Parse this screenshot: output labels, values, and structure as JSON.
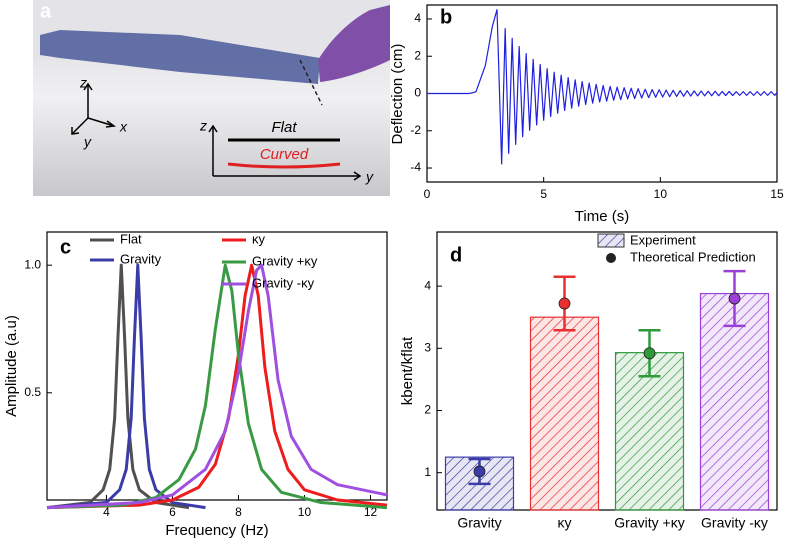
{
  "photo": {
    "panel_label": "a",
    "axis_z": "z",
    "axis_x": "x",
    "axis_y": "y",
    "inset_z": "z",
    "inset_y": "y",
    "flat": "Flat",
    "curved": "Curved"
  },
  "chart_data": [
    {
      "type": "line",
      "panel_label": "b",
      "x_label": "Time (s)",
      "y_label": "Deflection (cm)",
      "color": "#1f1fe0",
      "xlim": [
        0,
        15
      ],
      "ylim": [
        -4.75,
        4.75
      ],
      "xticks": [
        0,
        5,
        10,
        15
      ],
      "yticks": [
        -4,
        -2,
        0,
        2,
        4
      ],
      "x": [
        0,
        1.8,
        2.0,
        2.1,
        2.5,
        2.8,
        3.0,
        3.2,
        3.35,
        3.5,
        3.65,
        3.8,
        3.95,
        4.1,
        4.25,
        4.4,
        4.55,
        4.7,
        4.85,
        5,
        5.15,
        5.3,
        5.45,
        5.6,
        5.75,
        5.9,
        6.05,
        6.2,
        6.35,
        6.5,
        6.65,
        6.8,
        6.95,
        7.1,
        7.25,
        7.4,
        7.55,
        7.7,
        7.85,
        8,
        8.15,
        8.3,
        8.45,
        8.6,
        8.75,
        8.9,
        9.05,
        9.2,
        9.35,
        9.5,
        9.65,
        9.8,
        9.95,
        10.1,
        10.25,
        10.4,
        10.55,
        10.7,
        10.85,
        11,
        11.15,
        11.3,
        11.45,
        11.6,
        11.75,
        11.9,
        12.05,
        12.2,
        12.35,
        12.5,
        12.65,
        12.8,
        12.95,
        13.1,
        13.25,
        13.4,
        13.55,
        13.7,
        13.85,
        14,
        14.15,
        14.3,
        14.45,
        14.6,
        14.75,
        14.9,
        15
      ],
      "values": [
        0,
        0,
        0.05,
        0.1,
        1.5,
        3.6,
        4.5,
        -3.78,
        3.48,
        -3.21,
        2.96,
        -2.73,
        2.52,
        -2.32,
        2.14,
        -1.98,
        1.83,
        -1.69,
        1.56,
        -1.44,
        1.33,
        -1.23,
        1.14,
        -1.06,
        0.98,
        -0.91,
        0.85,
        -0.79,
        0.73,
        -0.68,
        0.64,
        -0.59,
        0.56,
        -0.52,
        0.49,
        -0.46,
        0.43,
        -0.41,
        0.38,
        -0.36,
        0.34,
        -0.33,
        0.31,
        -0.29,
        0.28,
        -0.27,
        0.26,
        -0.24,
        0.23,
        -0.22,
        0.21,
        -0.2,
        0.2,
        -0.19,
        0.18,
        -0.17,
        0.17,
        -0.16,
        0.16,
        -0.15,
        0.15,
        -0.14,
        0.14,
        -0.13,
        0.13,
        -0.13,
        0.12,
        -0.12,
        0.12,
        -0.12,
        0.11,
        -0.11,
        0.11,
        -0.11,
        0.1,
        -0.1,
        0.1,
        -0.1,
        0.1,
        -0.1,
        0.1,
        -0.1,
        0.1,
        -0.1,
        0.1,
        -0.1,
        0.05
      ]
    },
    {
      "type": "line",
      "panel_label": "c",
      "x_label": "Frequency (Hz)",
      "y_label": "Amplitude (a.u)",
      "xlim": [
        2.2,
        12.5
      ],
      "ylim": [
        0.08,
        1.13
      ],
      "xticks": [
        4,
        6,
        8,
        10,
        12
      ],
      "yticks": [
        0.5,
        {
          "value": 1,
          "label": "1.0"
        }
      ],
      "series": [
        {
          "name": "Flat",
          "color": "#505050",
          "x": [
            2.2,
            3.5,
            3.9,
            4.1,
            4.25,
            4.35,
            4.45,
            4.55,
            4.65,
            4.8,
            5.0,
            5.5,
            6.5
          ],
          "values": [
            0.05,
            0.07,
            0.12,
            0.2,
            0.4,
            0.72,
            1.0,
            0.72,
            0.4,
            0.2,
            0.12,
            0.07,
            0.05
          ]
        },
        {
          "name": "Gravity",
          "color": "#3c3ca8",
          "x": [
            2.2,
            4.0,
            4.4,
            4.6,
            4.75,
            4.85,
            4.95,
            5.05,
            5.15,
            5.3,
            5.5,
            6.0,
            7.0
          ],
          "values": [
            0.05,
            0.07,
            0.12,
            0.2,
            0.4,
            0.72,
            1.0,
            0.72,
            0.4,
            0.2,
            0.12,
            0.07,
            0.05
          ]
        },
        {
          "name": "κy",
          "color": "#ee1c1c",
          "x": [
            2.2,
            5,
            6,
            6.8,
            7.3,
            7.7,
            8.0,
            8.2,
            8.4,
            8.6,
            8.8,
            9.1,
            9.5,
            10,
            11,
            12.5
          ],
          "values": [
            0.05,
            0.06,
            0.08,
            0.13,
            0.22,
            0.4,
            0.65,
            0.88,
            1.0,
            0.88,
            0.6,
            0.35,
            0.2,
            0.12,
            0.08,
            0.06
          ]
        },
        {
          "name": "Gravity +κy",
          "color": "#3a9a44",
          "x": [
            2.2,
            4.5,
            5.5,
            6.2,
            6.7,
            7.0,
            7.3,
            7.6,
            7.8,
            8.0,
            8.3,
            8.7,
            9.3,
            10.5,
            12.5
          ],
          "values": [
            0.05,
            0.06,
            0.09,
            0.16,
            0.28,
            0.45,
            0.75,
            1.0,
            0.9,
            0.65,
            0.38,
            0.2,
            0.11,
            0.07,
            0.05
          ]
        },
        {
          "name": "Gravity -κy",
          "color": "#a050e0",
          "x": [
            2.2,
            5,
            6,
            7,
            7.6,
            8.0,
            8.3,
            8.55,
            8.7,
            8.9,
            9.2,
            9.6,
            10.2,
            11,
            12.5
          ],
          "values": [
            0.05,
            0.07,
            0.1,
            0.2,
            0.35,
            0.58,
            0.82,
            0.98,
            1.0,
            0.88,
            0.55,
            0.33,
            0.2,
            0.14,
            0.1
          ]
        }
      ]
    },
    {
      "type": "bar",
      "panel_label": "d",
      "y_label": "kbent/kflat",
      "categories": [
        "Gravity",
        "κy",
        "Gravity +κy",
        "Gravity -κy"
      ],
      "colors": [
        "#3c3ca8",
        "#e83030",
        "#2e9a3a",
        "#9a40d8"
      ],
      "ylim": [
        0.4,
        4.87
      ],
      "yticks": [
        1,
        2,
        3,
        4
      ],
      "series": [
        {
          "name": "Experiment",
          "values": [
            1.25,
            3.5,
            2.93,
            3.88
          ]
        },
        {
          "name": "Theoretical Prediction",
          "values": [
            1.02,
            3.72,
            2.92,
            3.8
          ],
          "errors": [
            0.2,
            0.43,
            0.37,
            0.44
          ]
        }
      ]
    }
  ]
}
